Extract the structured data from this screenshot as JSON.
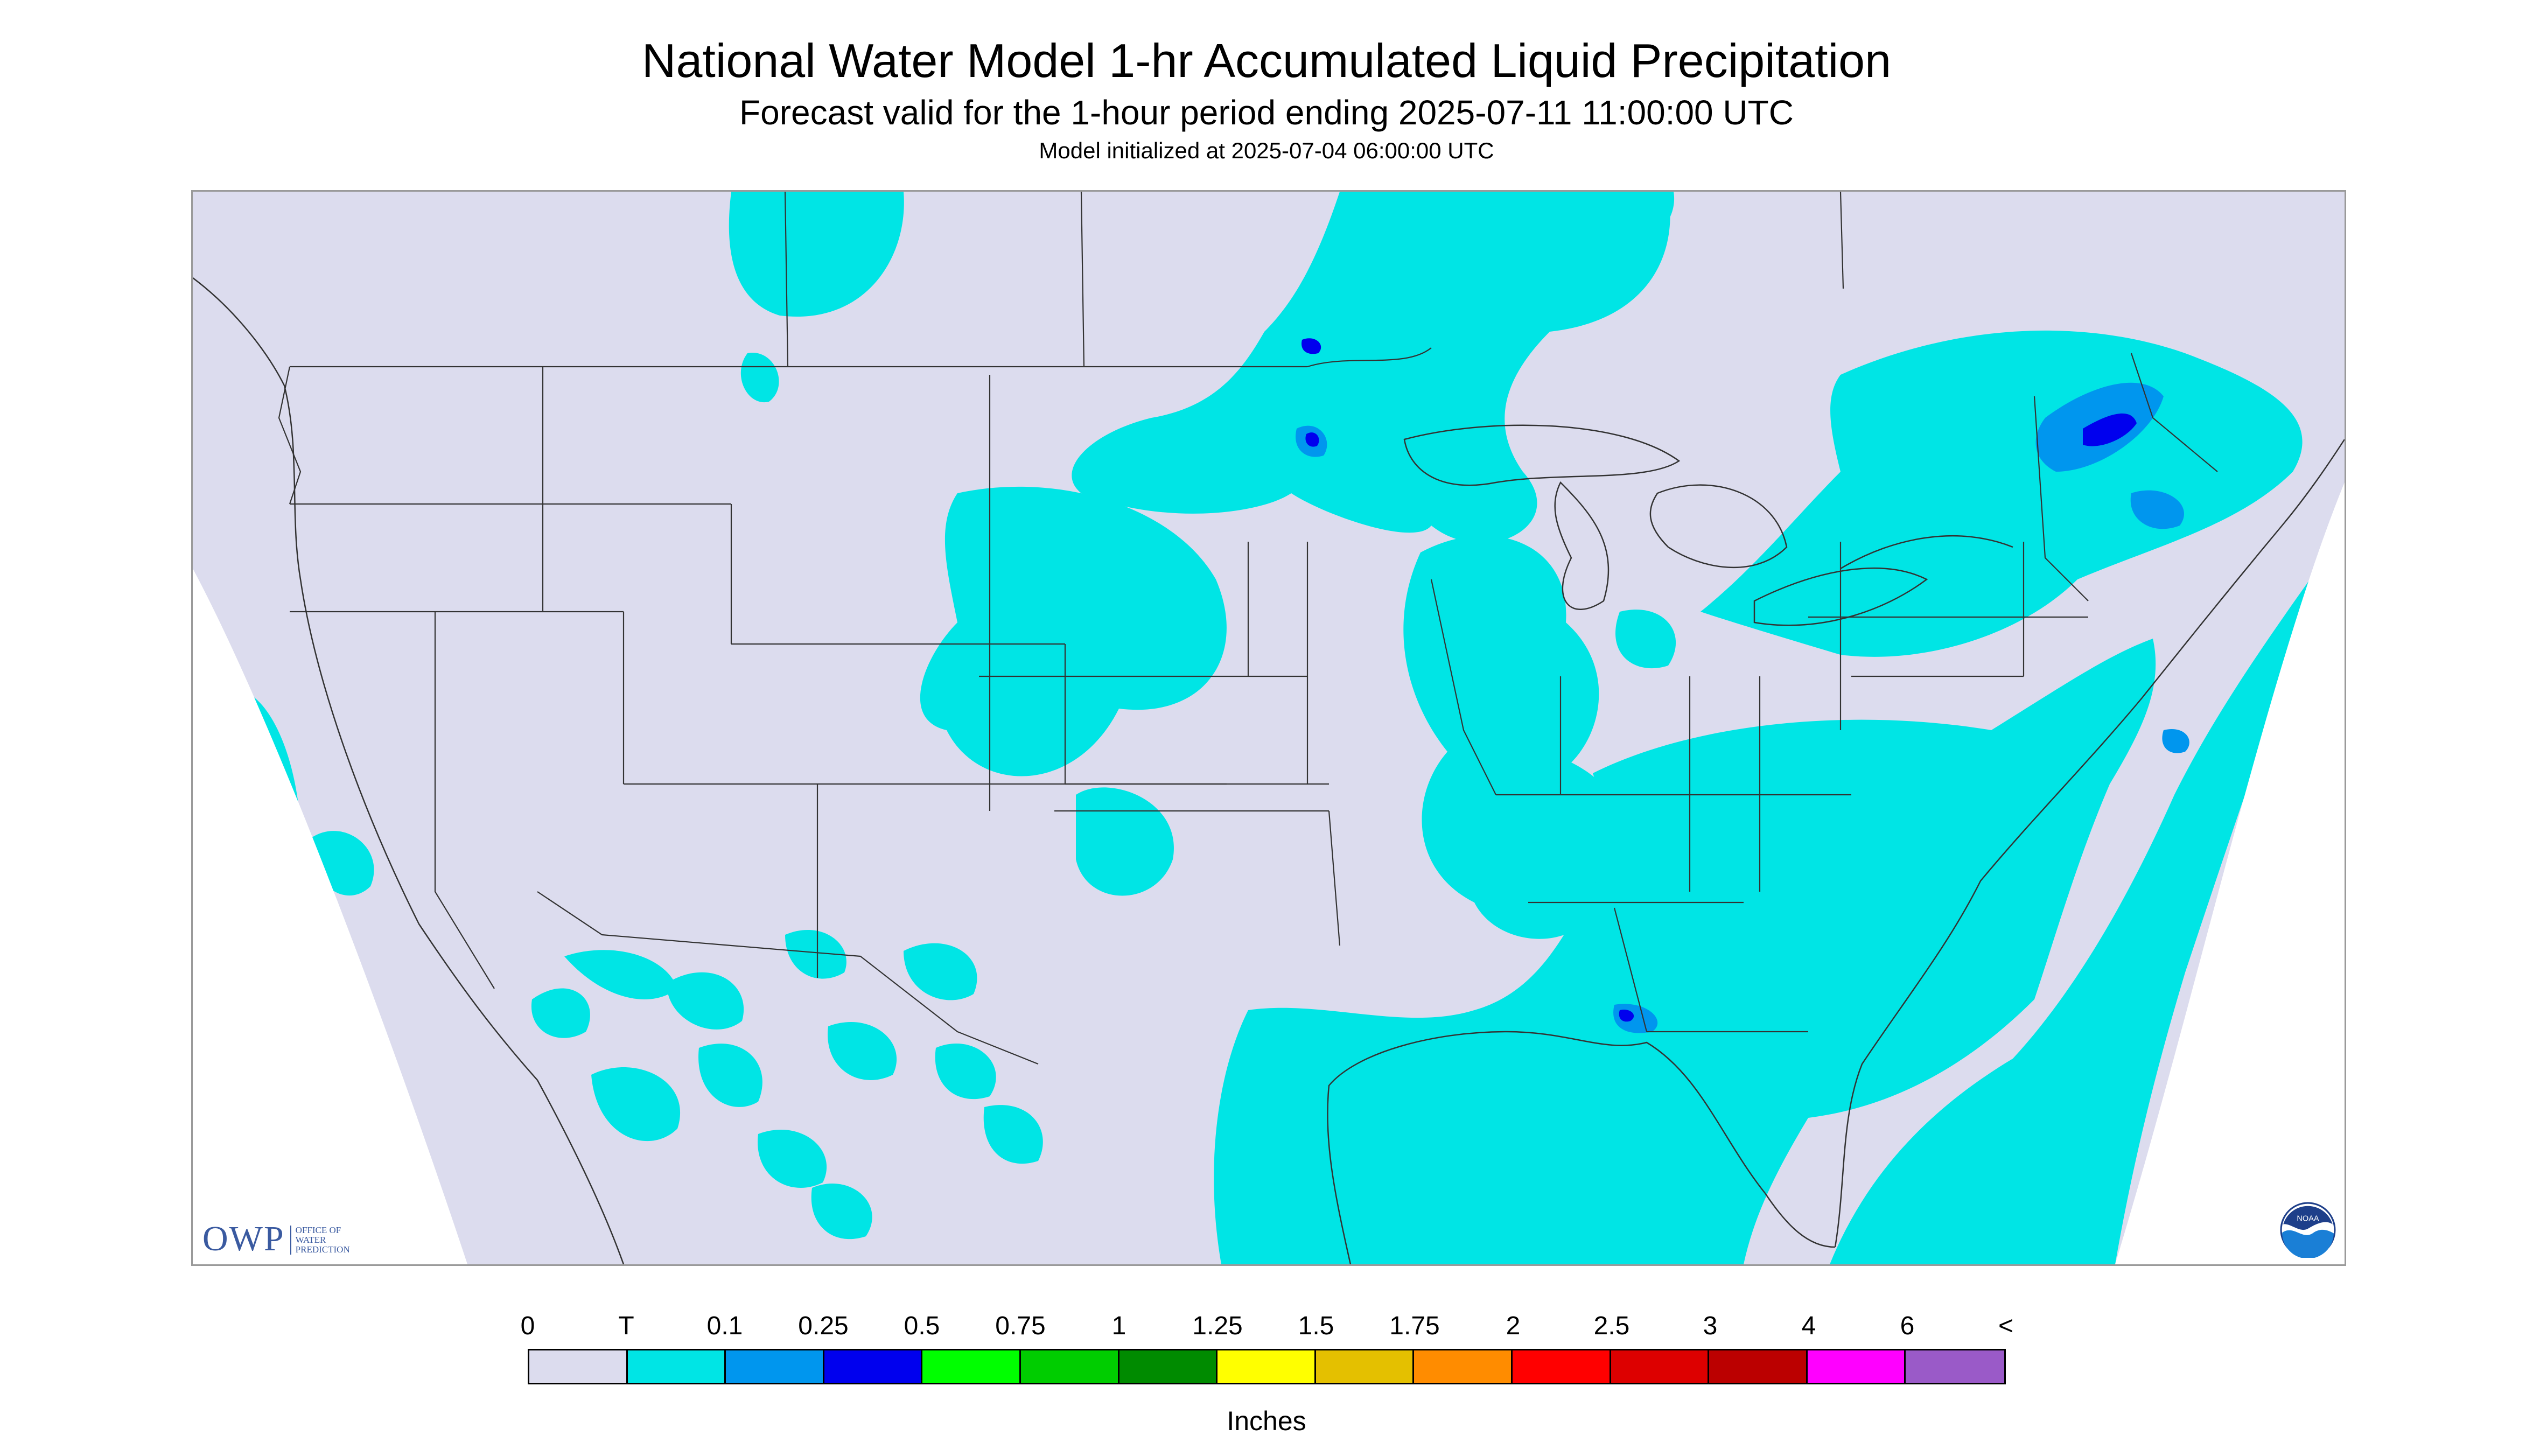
{
  "title": "National Water Model 1-hr Accumulated Liquid Precipitation",
  "subtitle": "Forecast valid for the 1-hour period ending 2025-07-11 11:00:00 UTC",
  "init_line": "Model initialized at 2025-07-04 06:00:00 UTC",
  "logos": {
    "owp_mark": "OWP",
    "owp_lines": [
      "OFFICE OF",
      "WATER",
      "PREDICTION"
    ],
    "noaa_label": "NOAA"
  },
  "legend": {
    "labels": [
      "0",
      "T",
      "0.1",
      "0.25",
      "0.5",
      "0.75",
      "1",
      "1.25",
      "1.5",
      "1.75",
      "2",
      "2.5",
      "3",
      "4",
      "6",
      "<"
    ],
    "colors": [
      "#dcdcee",
      "#00e5e5",
      "#0096ee",
      "#0000ee",
      "#00ff00",
      "#00cd00",
      "#008b00",
      "#ffff00",
      "#e4c000",
      "#ff8c00",
      "#ff0000",
      "#dd0000",
      "#bb0000",
      "#ff00ff",
      "#9a5ac8"
    ],
    "units": "Inches"
  },
  "map": {
    "outside_domain_color": "#ffffff",
    "no_precip_color": "#dcdcee",
    "trace_color": "#00e5e5",
    "light_color": "#0096ee",
    "moderate_color": "#0000ee",
    "boundary_color": "#333333"
  }
}
